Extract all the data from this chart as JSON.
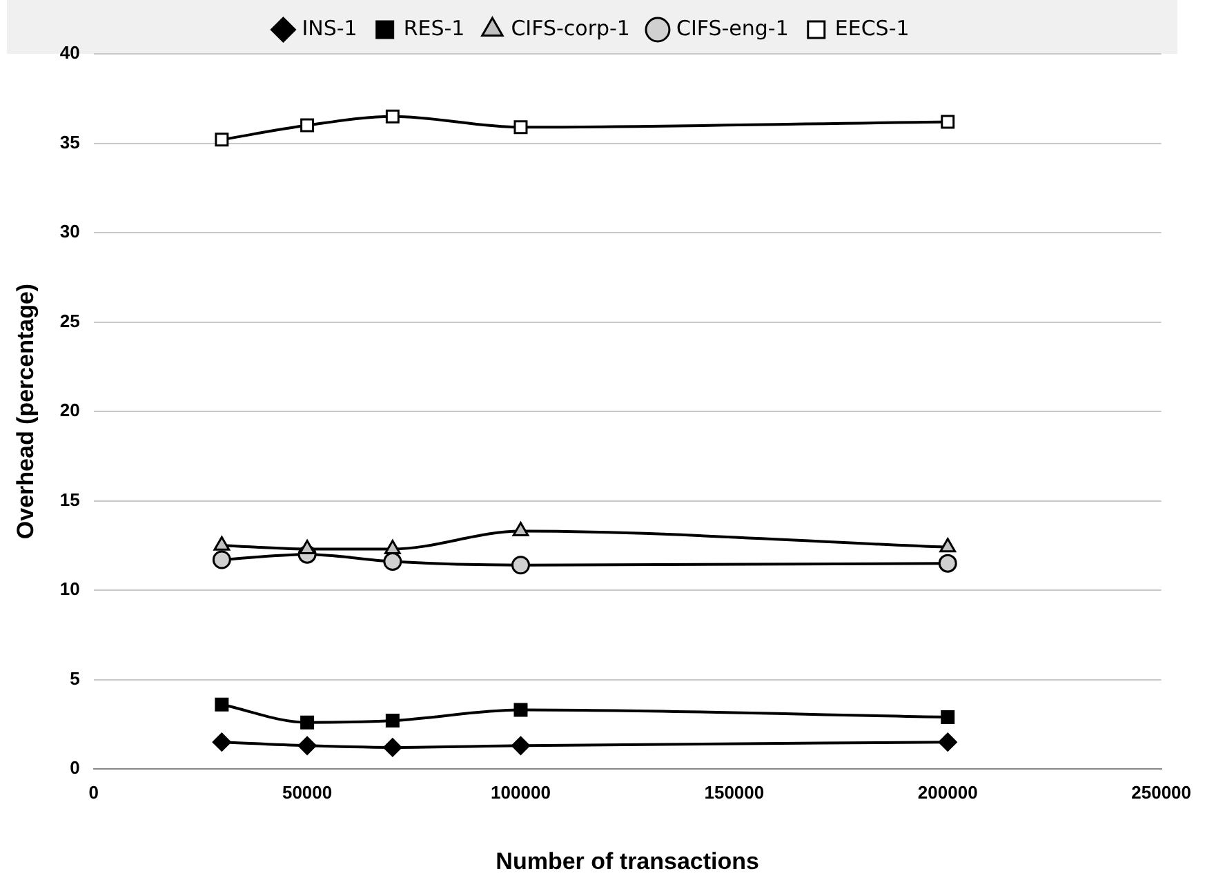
{
  "chart_data": {
    "type": "line",
    "xlabel": "Number of transactions",
    "ylabel": "Overhead (percentage)",
    "x": [
      30000,
      50000,
      70000,
      100000,
      200000
    ],
    "series": [
      {
        "name": "INS-1",
        "color": "#000000",
        "marker": "diamond",
        "values": [
          1.5,
          1.3,
          1.2,
          1.3,
          1.5
        ]
      },
      {
        "name": "RES-1",
        "color": "#000000",
        "marker": "square",
        "values": [
          3.6,
          2.6,
          2.7,
          3.3,
          2.9
        ]
      },
      {
        "name": "CIFS-corp-1",
        "color": "#c0c0c0",
        "marker": "triangle",
        "values": [
          12.5,
          12.3,
          12.3,
          13.3,
          12.4
        ]
      },
      {
        "name": "CIFS-eng-1",
        "color": "#d0d0d0",
        "marker": "circle",
        "values": [
          11.7,
          12.0,
          11.6,
          11.4,
          11.5
        ]
      },
      {
        "name": "EECS-1",
        "color": "#ffffff",
        "marker": "square",
        "values": [
          35.2,
          36.0,
          36.5,
          35.9,
          36.2
        ]
      }
    ],
    "xlim": [
      0,
      250000
    ],
    "xticks": [
      0,
      50000,
      100000,
      150000,
      200000,
      250000
    ],
    "ylim": [
      0,
      40
    ],
    "yticks": [
      0,
      5,
      10,
      15,
      20,
      25,
      30,
      35,
      40
    ],
    "grid": "y",
    "legend": "top",
    "line_style": "solid"
  }
}
